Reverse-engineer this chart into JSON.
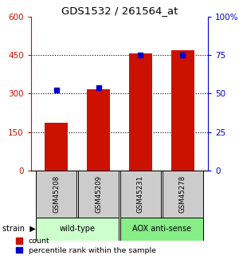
{
  "title": "GDS1532 / 261564_at",
  "samples": [
    "GSM45208",
    "GSM45209",
    "GSM45231",
    "GSM45278"
  ],
  "counts": [
    185,
    315,
    455,
    468
  ],
  "percentiles": [
    52,
    54,
    75,
    75
  ],
  "ylim_left": [
    0,
    600
  ],
  "ylim_right": [
    0,
    100
  ],
  "yticks_left": [
    0,
    150,
    300,
    450,
    600
  ],
  "yticks_right": [
    0,
    25,
    50,
    75,
    100
  ],
  "bar_color": "#cc1100",
  "dot_color": "#0000cc",
  "bg_color": "#ffffff",
  "strain_groups": [
    {
      "label": "wild-type",
      "indices": [
        0,
        1
      ],
      "color": "#ccffcc"
    },
    {
      "label": "AOX anti-sense",
      "indices": [
        2,
        3
      ],
      "color": "#88ee88"
    }
  ],
  "sample_box_color": "#cccccc",
  "left_tick_color": "#cc1100",
  "right_tick_color": "#0000cc",
  "bar_width": 0.55,
  "grid_yticks": [
    150,
    300,
    450
  ]
}
